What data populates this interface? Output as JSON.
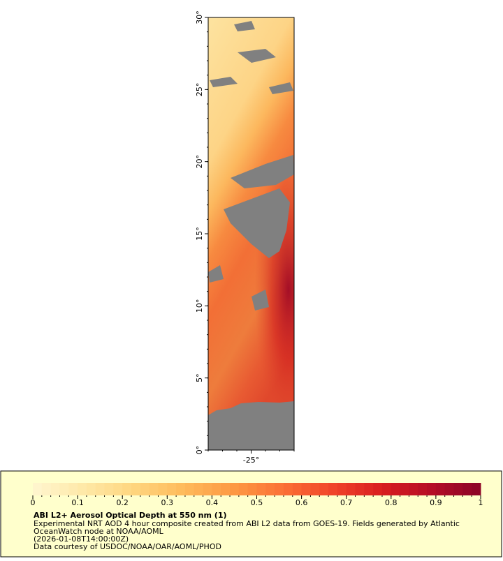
{
  "map": {
    "xlim": [
      -28,
      -22
    ],
    "ylim": [
      0,
      30
    ],
    "xticks": [
      {
        "value": -25,
        "label": "-25°"
      }
    ],
    "yticks": [
      {
        "value": 0,
        "label": "0°"
      },
      {
        "value": 5,
        "label": "5°"
      },
      {
        "value": 10,
        "label": "10°"
      },
      {
        "value": 15,
        "label": "15°"
      },
      {
        "value": 20,
        "label": "20°"
      },
      {
        "value": 25,
        "label": "25°"
      },
      {
        "value": 30,
        "label": "30°"
      }
    ]
  },
  "colorbar": {
    "lim": [
      0,
      1
    ],
    "ticks": [
      0,
      0.1,
      0.2,
      0.3,
      0.4,
      0.5,
      0.6,
      0.7,
      0.8,
      0.9,
      1
    ],
    "palette": [
      "#fff6d0",
      "#fee9a8",
      "#fed680",
      "#febb5c",
      "#fd9a44",
      "#fb7236",
      "#f1452a",
      "#d91e1f",
      "#b50d26",
      "#8b0426"
    ]
  },
  "legend": {
    "title": "ABI L2+ Aerosol Optical Depth at 550 nm (1)",
    "lines": [
      "Experimental NRT AOD 4 hour composite created from ABI L2 data from GOES-19. Fields generated by Atlantic",
      "OceanWatch node at NOAA/AOML",
      "(2026-01-08T14:00:00Z)",
      "Data courtesy of USDOC/NOAA/OAR/AOML/PHOD"
    ]
  }
}
